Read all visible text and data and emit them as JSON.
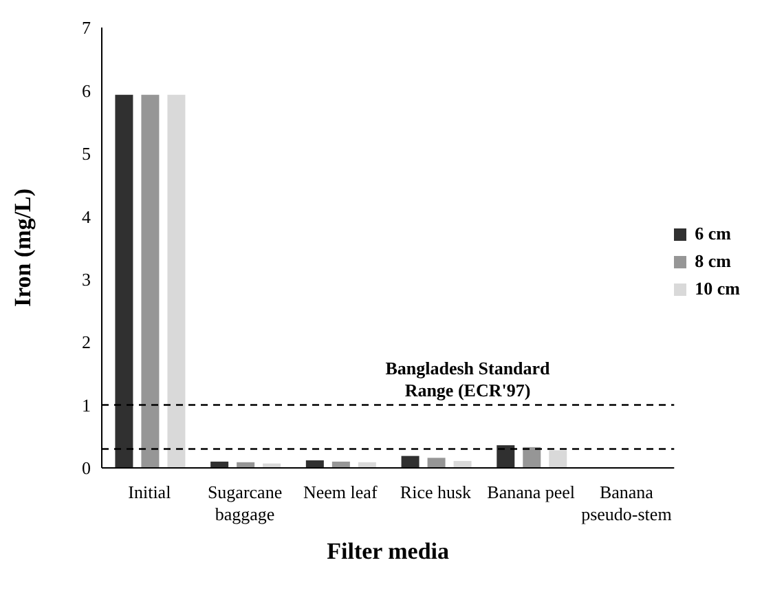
{
  "chart_data": {
    "type": "bar",
    "xlabel": "Filter media",
    "ylabel": "Iron (mg/L)",
    "categories": [
      "Initial",
      "Sugarcane baggage",
      "Neem leaf",
      "Rice husk",
      "Banana peel",
      "Banana pseudo-stem"
    ],
    "series": [
      {
        "name": "6 cm",
        "color": "#303030",
        "values": [
          5.93,
          0.1,
          0.12,
          0.19,
          0.36,
          0
        ]
      },
      {
        "name": "8 cm",
        "color": "#969696",
        "values": [
          5.93,
          0.09,
          0.1,
          0.16,
          0.33,
          0
        ]
      },
      {
        "name": "10 cm",
        "color": "#d9d9d9",
        "values": [
          5.93,
          0.07,
          0.09,
          0.11,
          0.28,
          0
        ]
      }
    ],
    "ylim": [
      0,
      7
    ],
    "yticks": [
      0,
      1,
      2,
      3,
      4,
      5,
      6,
      7
    ],
    "grid": false,
    "legend": "right",
    "ref_lines": [
      {
        "axis": "y",
        "value": 1,
        "line_style": "dashed",
        "color": "#000000"
      },
      {
        "axis": "y",
        "value": 0.3,
        "line_style": "dashed",
        "color": "#000000"
      }
    ],
    "annotations": [
      "Bangladesh Standard Range (ECR'97)"
    ]
  }
}
